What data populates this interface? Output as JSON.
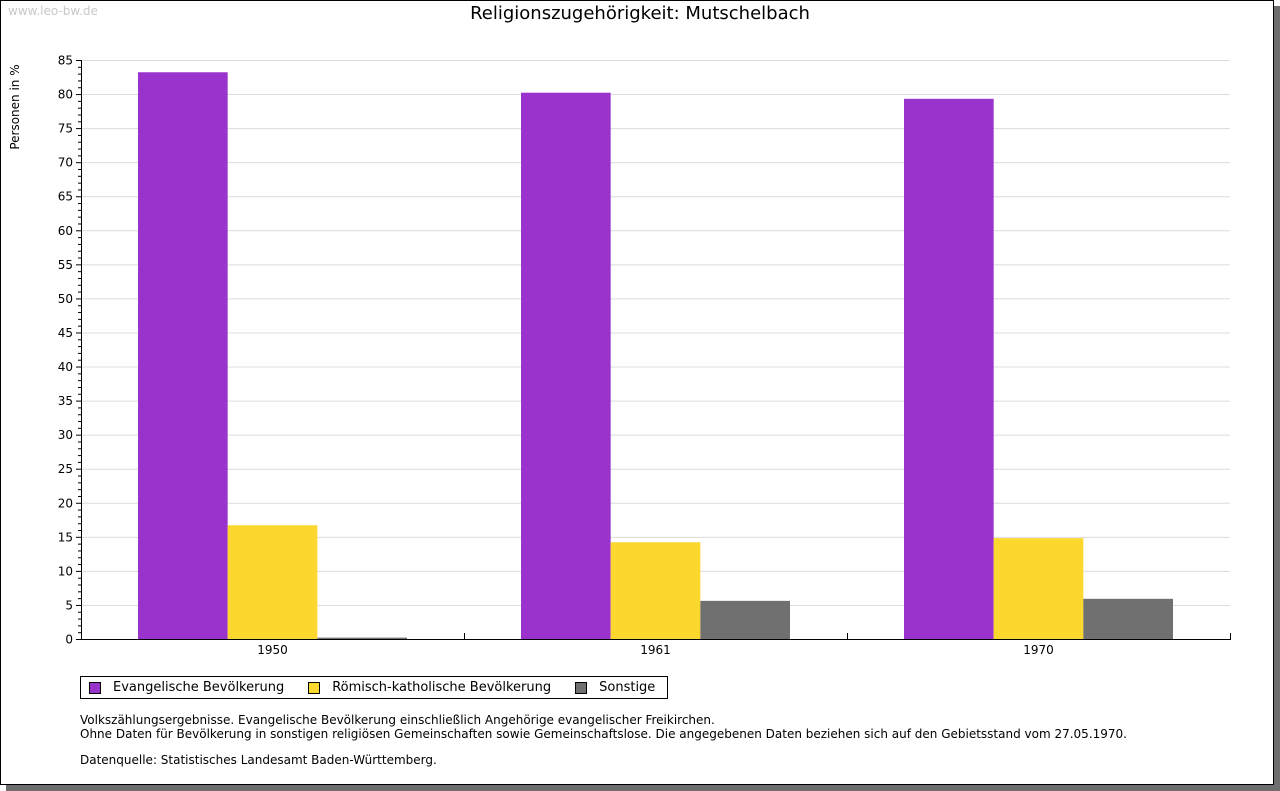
{
  "watermark": "www.leo-bw.de",
  "chart_data": {
    "type": "bar",
    "title": "Religionszugehörigkeit: Mutschelbach",
    "xlabel": "",
    "ylabel": "Personen in %",
    "ylim": [
      0,
      85
    ],
    "yticks": [
      0,
      5,
      10,
      15,
      20,
      25,
      30,
      35,
      40,
      45,
      50,
      55,
      60,
      65,
      70,
      75,
      80,
      85
    ],
    "grid": true,
    "legend_position": "bottom-left",
    "categories": [
      "1950",
      "1961",
      "1970"
    ],
    "series": [
      {
        "name": "Evangelische Bevölkerung",
        "color": "#9933cc",
        "values": [
          83.2,
          80.2,
          79.3
        ]
      },
      {
        "name": "Römisch-katholische Bevölkerung",
        "color": "#fcd72e",
        "values": [
          16.7,
          14.2,
          14.8
        ]
      },
      {
        "name": "Sonstige",
        "color": "#707070",
        "values": [
          0.2,
          5.6,
          5.9
        ]
      }
    ]
  },
  "notes": {
    "line1": "Volkszählungsergebnisse. Evangelische Bevölkerung einschließlich Angehörige evangelischer Freikirchen.",
    "line2": "Ohne Daten für Bevölkerung in sonstigen religiösen Gemeinschaften sowie Gemeinschaftslose. Die angegebenen Daten beziehen sich auf den Gebietsstand vom 27.05.1970.",
    "source": "Datenquelle: Statistisches Landesamt Baden-Württemberg."
  }
}
